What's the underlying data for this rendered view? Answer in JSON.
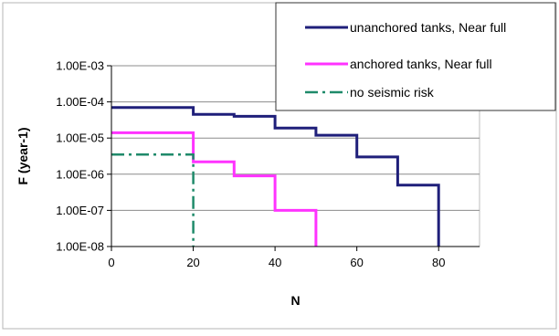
{
  "chart_data": {
    "type": "line",
    "title": "",
    "xlabel": "N",
    "ylabel": "F (year-1)",
    "xlim": [
      0,
      90
    ],
    "x_ticks": [
      "0",
      "20",
      "40",
      "60",
      "80"
    ],
    "x_tick_values": [
      0,
      20,
      40,
      60,
      80
    ],
    "ylim": [
      1e-08,
      0.001
    ],
    "y_scale": "log",
    "y_ticks": [
      "1.00E-03",
      "1.00E-04",
      "1.00E-05",
      "1.00E-06",
      "1.00E-07",
      "1.00E-08"
    ],
    "y_tick_values": [
      0.001,
      0.0001,
      1e-05,
      1e-06,
      1e-07,
      1e-08
    ],
    "grid": "horizontal major gridlines",
    "legend_position": "top-right",
    "series": [
      {
        "name": "unanchored tanks, Near full",
        "color": "#1f1f7a",
        "style": "solid step",
        "points": [
          [
            0,
            7e-05
          ],
          [
            20,
            7e-05
          ],
          [
            20,
            4.5e-05
          ],
          [
            30,
            4.5e-05
          ],
          [
            30,
            4e-05
          ],
          [
            40,
            4e-05
          ],
          [
            40,
            1.9e-05
          ],
          [
            50,
            1.9e-05
          ],
          [
            50,
            1.2e-05
          ],
          [
            60,
            1.2e-05
          ],
          [
            60,
            3e-06
          ],
          [
            70,
            3e-06
          ],
          [
            70,
            5e-07
          ],
          [
            80,
            5e-07
          ],
          [
            80,
            1e-08
          ]
        ]
      },
      {
        "name": "anchored tanks, Near full",
        "color": "#ff33ff",
        "style": "solid step",
        "points": [
          [
            0,
            1.4e-05
          ],
          [
            20,
            1.4e-05
          ],
          [
            20,
            2.2e-06
          ],
          [
            30,
            2.2e-06
          ],
          [
            30,
            9e-07
          ],
          [
            40,
            9e-07
          ],
          [
            40,
            1e-07
          ],
          [
            50,
            1e-07
          ],
          [
            50,
            1e-08
          ]
        ]
      },
      {
        "name": "no seismic risk",
        "color": "#1f8a6a",
        "style": "dash-dot step",
        "points": [
          [
            0,
            3.5e-06
          ],
          [
            20,
            3.5e-06
          ],
          [
            20,
            1e-08
          ]
        ]
      }
    ]
  }
}
